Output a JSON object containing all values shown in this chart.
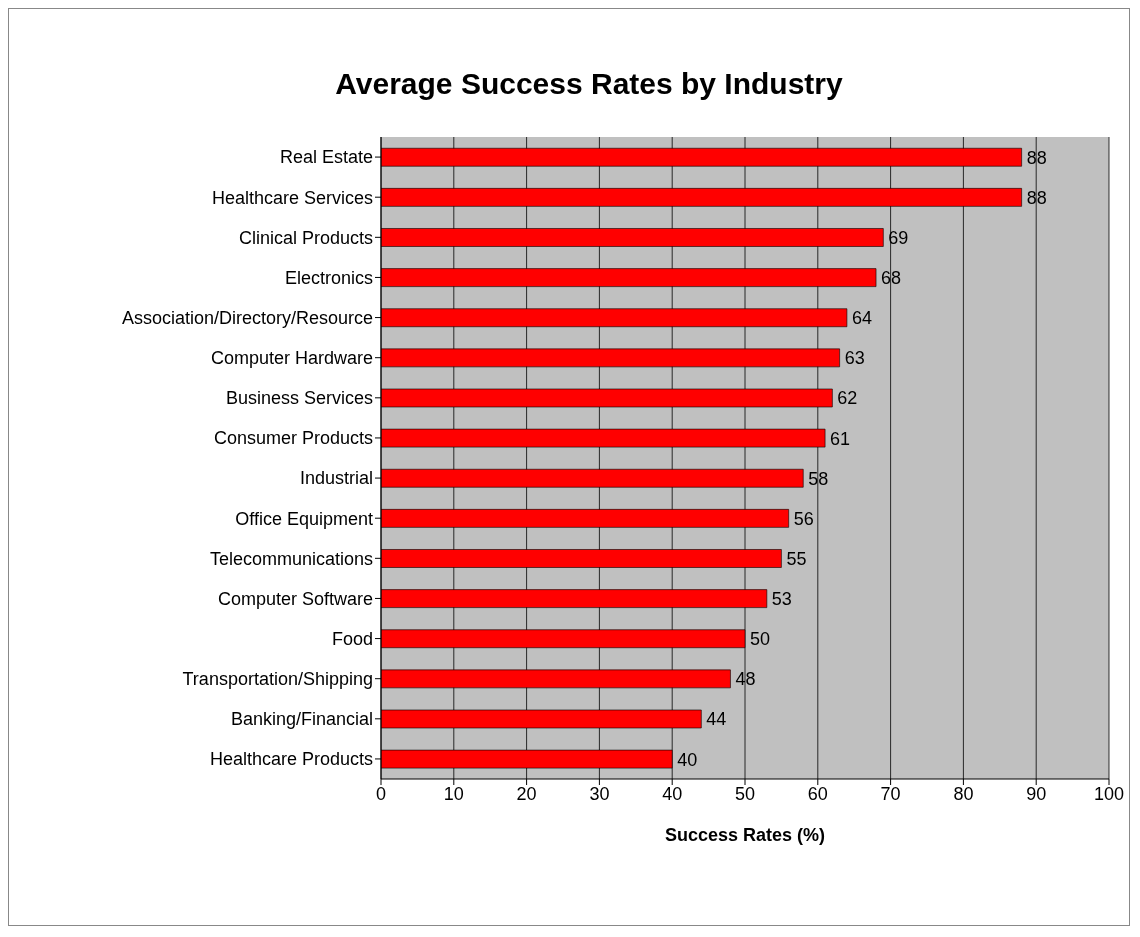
{
  "chart_data": {
    "type": "bar",
    "orientation": "horizontal",
    "title": "Average Success Rates by Industry",
    "xlabel": "Success Rates (%)",
    "categories": [
      "Real Estate",
      "Healthcare Services",
      "Clinical Products",
      "Electronics",
      "Association/Directory/Resource",
      "Computer Hardware",
      "Business Services",
      "Consumer Products",
      "Industrial",
      "Office Equipment",
      "Telecommunications",
      "Computer Software",
      "Food",
      "Transportation/Shipping",
      "Banking/Financial",
      "Healthcare Products"
    ],
    "values": [
      88,
      88,
      69,
      68,
      64,
      63,
      62,
      61,
      58,
      56,
      55,
      53,
      50,
      48,
      44,
      40
    ],
    "color": "#ff0000",
    "xlim": [
      0,
      100
    ],
    "xticks": [
      0,
      10,
      20,
      30,
      40,
      50,
      60,
      70,
      80,
      90,
      100
    ],
    "grid": "x",
    "data_labels": true
  }
}
